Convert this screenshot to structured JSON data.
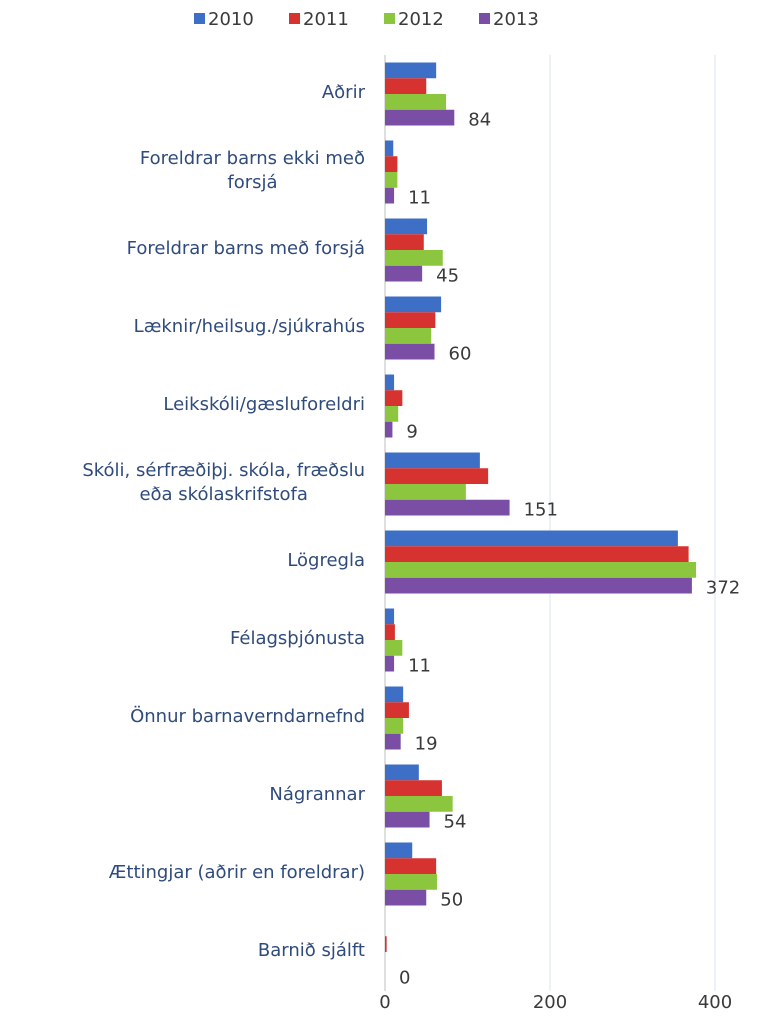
{
  "chart_data": {
    "type": "barh",
    "categories": [
      "Aðrir",
      "Foreldrar barns ekki með\nforsjá",
      "Foreldrar barns með forsjá",
      "Læknir/heilsug./sjúkrahús",
      "Leikskóli/gæsluforeldri",
      "Skóli, sérfræðiþj. skóla, fræðslu\neða skólaskrifstofa",
      "Lögregla",
      "Félagsþjónusta",
      "Önnur barnaverndarnefnd",
      "Nágrannar",
      "Ættingjar (aðrir en foreldrar)",
      "Barnið sjálft"
    ],
    "series": [
      {
        "name": "2010",
        "color": "#3e6fc6",
        "values": [
          62,
          10,
          51,
          68,
          11,
          115,
          355,
          11,
          22,
          41,
          33,
          0
        ]
      },
      {
        "name": "2011",
        "color": "#d6322f",
        "values": [
          50,
          15,
          47,
          61,
          21,
          125,
          368,
          12,
          29,
          69,
          62,
          2
        ]
      },
      {
        "name": "2012",
        "color": "#8cc63f",
        "values": [
          74,
          15,
          70,
          56,
          16,
          98,
          377,
          21,
          22,
          82,
          63,
          0
        ]
      },
      {
        "name": "2013",
        "color": "#7b4ea6",
        "values": [
          84,
          11,
          45,
          60,
          9,
          151,
          372,
          11,
          19,
          54,
          50,
          0
        ],
        "show_labels": true
      }
    ],
    "xlim": [
      0,
      460
    ],
    "xticks": [
      0,
      200,
      400
    ],
    "grid": true,
    "legend": "top"
  }
}
